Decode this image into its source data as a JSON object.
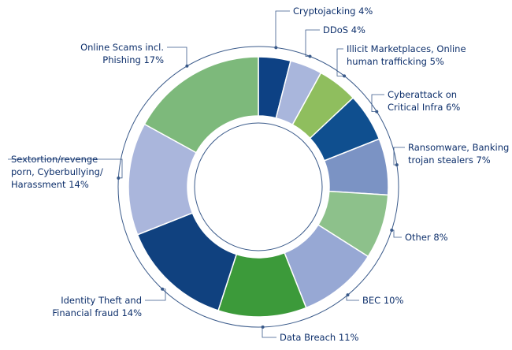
{
  "chart_data": {
    "type": "donut",
    "categories": [
      [
        "Cryptojacking"
      ],
      [
        "DDoS"
      ],
      [
        "Illicit Marketplaces, Online",
        "human trafficking"
      ],
      [
        "Cyberattack on",
        "Critical Infra"
      ],
      [
        "Ransomware, Banking",
        "trojan stealers"
      ],
      [
        "Other"
      ],
      [
        "BEC"
      ],
      [
        "Data Breach"
      ],
      [
        "Identity Theft and",
        "Financial fraud"
      ],
      [
        "Sextortion/revenge",
        "porn, Cyberbullying/",
        "Harassment"
      ],
      [
        "Online Scams incl.",
        "Phishing"
      ]
    ],
    "values": [
      4,
      4,
      5,
      6,
      7,
      8,
      10,
      11,
      14,
      14,
      17
    ],
    "value_labels": [
      "4%",
      "4%",
      "5%",
      "6%",
      "7%",
      "8%",
      "10%",
      "11%",
      "14%",
      "14%",
      "17%"
    ],
    "colors": [
      "#0d4184",
      "#a9b6dc",
      "#8fbe5e",
      "#0f4f8f",
      "#7b93c4",
      "#8dc18b",
      "#97a8d4",
      "#3c9a3a",
      "#10417f",
      "#aab6dc",
      "#7db97b"
    ]
  }
}
